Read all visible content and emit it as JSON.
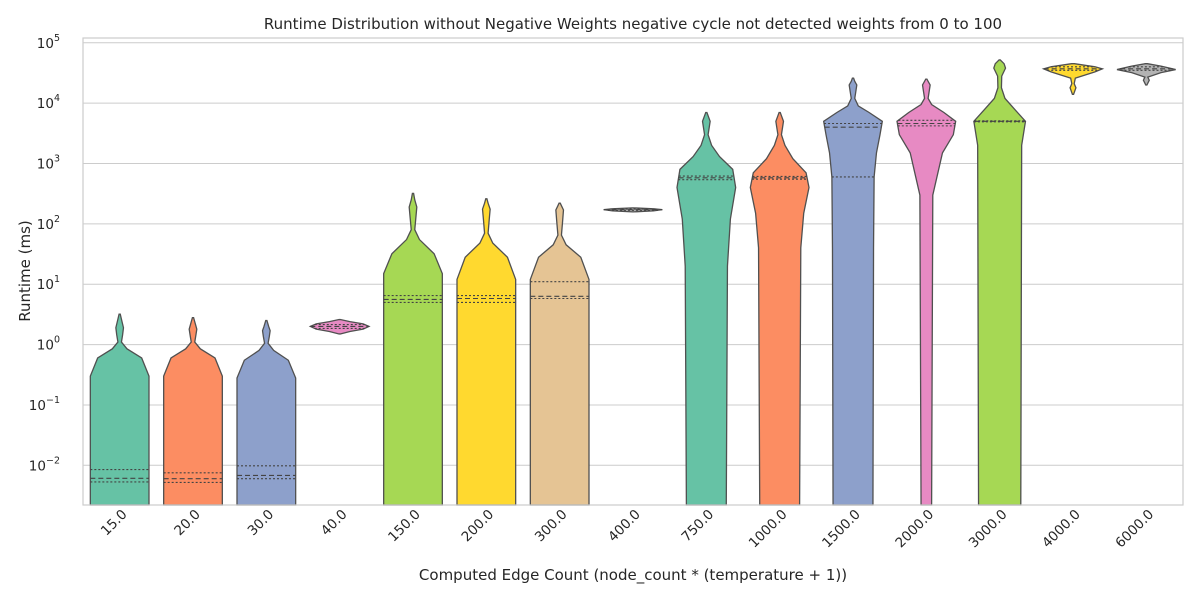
{
  "chart_data": {
    "type": "violin",
    "title": "Runtime Distribution without Negative Weights negative cycle not detected weights from 0 to 100",
    "xlabel": "Computed Edge Count (node_count * (temperature + 1))",
    "ylabel": "Runtime (ms)",
    "y_scale": "log",
    "ylim": [
      0.0022,
      120000
    ],
    "y_ticks": [
      {
        "value": 0.01,
        "base": "10",
        "exp": "−2"
      },
      {
        "value": 0.1,
        "base": "10",
        "exp": "−1"
      },
      {
        "value": 1,
        "base": "10",
        "exp": "0"
      },
      {
        "value": 10,
        "base": "10",
        "exp": "1"
      },
      {
        "value": 100,
        "base": "10",
        "exp": "2"
      },
      {
        "value": 1000,
        "base": "10",
        "exp": "3"
      },
      {
        "value": 10000,
        "base": "10",
        "exp": "4"
      },
      {
        "value": 100000,
        "base": "10",
        "exp": "5"
      }
    ],
    "grid": true,
    "categories": [
      "15.0",
      "20.0",
      "30.0",
      "40.0",
      "150.0",
      "200.0",
      "300.0",
      "400.0",
      "750.0",
      "1000.0",
      "1500.0",
      "2000.0",
      "3000.0",
      "4000.0",
      "6000.0"
    ],
    "colors": [
      "#66c2a5",
      "#fc8d62",
      "#8da0cb",
      "#e78ac3",
      "#a6d854",
      "#ffd92f",
      "#e5c494",
      "#b3b3b3",
      "#66c2a5",
      "#fc8d62",
      "#8da0cb",
      "#e78ac3",
      "#a6d854",
      "#ffd92f",
      "#b3b3b3"
    ],
    "violins": [
      {
        "profile": [
          [
            0.0022,
            1.0
          ],
          [
            0.3,
            1.0
          ],
          [
            0.6,
            0.75
          ],
          [
            0.85,
            0.25
          ],
          [
            1.1,
            0.06
          ],
          [
            1.45,
            0.1
          ],
          [
            1.9,
            0.13
          ],
          [
            2.4,
            0.08
          ],
          [
            3.2,
            0.02
          ]
        ],
        "q1": 0.0053,
        "median": 0.0061,
        "q3": 0.0085
      },
      {
        "profile": [
          [
            0.0022,
            1.0
          ],
          [
            0.3,
            1.0
          ],
          [
            0.6,
            0.75
          ],
          [
            0.85,
            0.25
          ],
          [
            1.1,
            0.06
          ],
          [
            1.45,
            0.1
          ],
          [
            1.8,
            0.13
          ],
          [
            2.2,
            0.08
          ],
          [
            2.8,
            0.02
          ]
        ],
        "q1": 0.0052,
        "median": 0.006,
        "q3": 0.0075
      },
      {
        "profile": [
          [
            0.0022,
            1.0
          ],
          [
            0.28,
            1.0
          ],
          [
            0.55,
            0.75
          ],
          [
            0.8,
            0.25
          ],
          [
            1.05,
            0.06
          ],
          [
            1.35,
            0.1
          ],
          [
            1.7,
            0.13
          ],
          [
            2.0,
            0.08
          ],
          [
            2.5,
            0.02
          ]
        ],
        "q1": 0.006,
        "median": 0.0068,
        "q3": 0.0098
      },
      {
        "profile": [
          [
            1.5,
            0.02
          ],
          [
            1.65,
            0.35
          ],
          [
            1.8,
            0.8
          ],
          [
            2.0,
            1.0
          ],
          [
            2.2,
            0.8
          ],
          [
            2.4,
            0.35
          ],
          [
            2.6,
            0.02
          ]
        ],
        "q1": 1.85,
        "median": 2.0,
        "q3": 2.15
      },
      {
        "profile": [
          [
            0.0022,
            1.0
          ],
          [
            15,
            1.0
          ],
          [
            32,
            0.72
          ],
          [
            55,
            0.22
          ],
          [
            80,
            0.06
          ],
          [
            130,
            0.1
          ],
          [
            190,
            0.13
          ],
          [
            250,
            0.06
          ],
          [
            320,
            0.02
          ]
        ],
        "q1": 5.0,
        "median": 5.6,
        "q3": 6.5
      },
      {
        "profile": [
          [
            0.0022,
            1.0
          ],
          [
            12,
            1.0
          ],
          [
            28,
            0.72
          ],
          [
            48,
            0.22
          ],
          [
            70,
            0.06
          ],
          [
            120,
            0.1
          ],
          [
            175,
            0.13
          ],
          [
            220,
            0.06
          ],
          [
            260,
            0.02
          ]
        ],
        "q1": 5.0,
        "median": 5.8,
        "q3": 6.5
      },
      {
        "profile": [
          [
            0.0022,
            1.0
          ],
          [
            12,
            1.0
          ],
          [
            28,
            0.72
          ],
          [
            45,
            0.22
          ],
          [
            65,
            0.06
          ],
          [
            110,
            0.1
          ],
          [
            170,
            0.13
          ],
          [
            200,
            0.06
          ],
          [
            220,
            0.02
          ]
        ],
        "q1": 5.8,
        "median": 6.3,
        "q3": 11.0
      },
      {
        "profile": [
          [
            158,
            0.02
          ],
          [
            164,
            0.7
          ],
          [
            172,
            1.0
          ],
          [
            178,
            0.7
          ],
          [
            184,
            0.02
          ]
        ],
        "q1": 168,
        "median": 172,
        "q3": 176
      },
      {
        "profile": [
          [
            0.0022,
            0.68
          ],
          [
            20,
            0.72
          ],
          [
            120,
            0.82
          ],
          [
            400,
            1.0
          ],
          [
            800,
            0.9
          ],
          [
            1300,
            0.45
          ],
          [
            2000,
            0.18
          ],
          [
            3000,
            0.06
          ],
          [
            4000,
            0.1
          ],
          [
            5000,
            0.13
          ],
          [
            6200,
            0.06
          ],
          [
            7000,
            0.02
          ]
        ],
        "q1": 540,
        "median": 580,
        "q3": 620
      },
      {
        "profile": [
          [
            0.0022,
            0.68
          ],
          [
            40,
            0.72
          ],
          [
            150,
            0.82
          ],
          [
            400,
            1.0
          ],
          [
            700,
            0.9
          ],
          [
            1200,
            0.45
          ],
          [
            2000,
            0.18
          ],
          [
            3000,
            0.06
          ],
          [
            4000,
            0.1
          ],
          [
            5000,
            0.13
          ],
          [
            6200,
            0.06
          ],
          [
            7000,
            0.02
          ]
        ],
        "q1": 550,
        "median": 580,
        "q3": 610
      },
      {
        "profile": [
          [
            0.0022,
            0.68
          ],
          [
            40,
            0.7
          ],
          [
            600,
            0.72
          ],
          [
            1500,
            0.8
          ],
          [
            3000,
            0.92
          ],
          [
            5000,
            1.0
          ],
          [
            7000,
            0.55
          ],
          [
            9000,
            0.18
          ],
          [
            12000,
            0.06
          ],
          [
            16000,
            0.1
          ],
          [
            20000,
            0.13
          ],
          [
            23000,
            0.06
          ],
          [
            26000,
            0.02
          ]
        ],
        "q1": 600,
        "median": 4000,
        "q3": 4600
      },
      {
        "profile": [
          [
            0.0022,
            0.18
          ],
          [
            300,
            0.22
          ],
          [
            1500,
            0.55
          ],
          [
            3000,
            0.92
          ],
          [
            5000,
            1.0
          ],
          [
            7000,
            0.6
          ],
          [
            9500,
            0.18
          ],
          [
            12000,
            0.06
          ],
          [
            16000,
            0.1
          ],
          [
            20000,
            0.13
          ],
          [
            23000,
            0.06
          ],
          [
            25000,
            0.02
          ]
        ],
        "q1": 4200,
        "median": 4600,
        "q3": 5200
      },
      {
        "profile": [
          [
            0.0022,
            0.72
          ],
          [
            2000,
            0.75
          ],
          [
            5000,
            0.88
          ],
          [
            8000,
            0.5
          ],
          [
            12000,
            0.18
          ],
          [
            18000,
            0.06
          ],
          [
            28000,
            0.07
          ],
          [
            38000,
            0.2
          ],
          [
            45000,
            0.15
          ],
          [
            52000,
            0.02
          ]
        ],
        "q1": 4900,
        "median": 5000,
        "q3": 5100
      },
      {
        "profile": [
          [
            14000,
            0.02
          ],
          [
            18000,
            0.1
          ],
          [
            21000,
            0.04
          ],
          [
            26000,
            0.08
          ],
          [
            33000,
            0.75
          ],
          [
            37000,
            1.0
          ],
          [
            40000,
            0.75
          ],
          [
            45000,
            0.05
          ]
        ],
        "q1": 35000,
        "median": 37000,
        "q3": 40000
      },
      {
        "profile": [
          [
            20000,
            0.02
          ],
          [
            24000,
            0.1
          ],
          [
            27000,
            0.05
          ],
          [
            32000,
            0.5
          ],
          [
            36000,
            1.0
          ],
          [
            41000,
            0.5
          ],
          [
            45000,
            0.04
          ]
        ],
        "q1": 35000,
        "median": 37000,
        "q3": 40000
      }
    ]
  }
}
